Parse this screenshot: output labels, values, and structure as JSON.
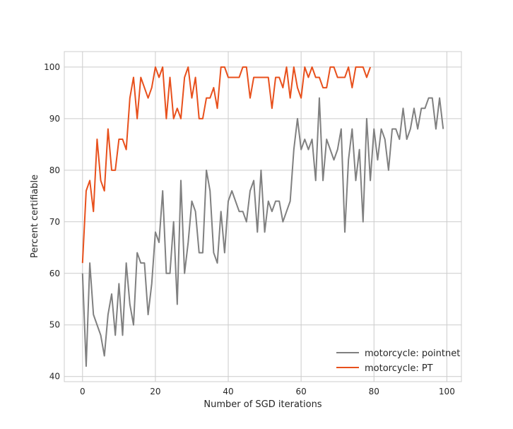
{
  "chart_data": {
    "type": "line",
    "title": "",
    "xlabel": "Number of SGD iterations",
    "ylabel": "Percent certifiable",
    "xlim": [
      -5,
      104
    ],
    "ylim": [
      39,
      103
    ],
    "xticks": [
      0,
      20,
      40,
      60,
      80,
      100
    ],
    "yticks": [
      40,
      50,
      60,
      70,
      80,
      90,
      100
    ],
    "grid": true,
    "legend_position": "lower-right",
    "series": [
      {
        "name": "motorcycle: pointnet",
        "color": "#808080",
        "x_start": 0,
        "values": [
          60,
          42,
          62,
          52,
          50,
          48,
          44,
          52,
          56,
          48,
          58,
          48,
          62,
          54,
          50,
          64,
          62,
          62,
          52,
          58,
          68,
          66,
          76,
          60,
          60,
          70,
          54,
          78,
          60,
          66,
          74,
          72,
          64,
          64,
          80,
          76,
          64,
          62,
          72,
          64,
          74,
          76,
          74,
          72,
          72,
          70,
          76,
          78,
          68,
          80,
          68,
          74,
          72,
          74,
          74,
          70,
          72,
          74,
          84,
          90,
          84,
          86,
          84,
          86,
          78,
          94,
          78,
          86,
          84,
          82,
          84,
          88,
          68,
          82,
          88,
          78,
          84,
          70,
          90,
          78,
          88,
          82,
          88,
          86,
          80,
          88,
          88,
          86,
          92,
          86,
          88,
          92,
          88,
          92,
          92,
          94,
          94,
          88,
          94,
          88
        ]
      },
      {
        "name": "motorcycle: PT",
        "color": "#e8501c",
        "x_start": 0,
        "values": [
          62,
          76,
          78,
          72,
          86,
          78,
          76,
          88,
          80,
          80,
          86,
          86,
          84,
          94,
          98,
          90,
          98,
          96,
          94,
          96,
          100,
          98,
          100,
          90,
          98,
          90,
          92,
          90,
          98,
          100,
          94,
          98,
          90,
          90,
          94,
          94,
          96,
          92,
          100,
          100,
          98,
          98,
          98,
          98,
          100,
          100,
          94,
          98,
          98,
          98,
          98,
          98,
          92,
          98,
          98,
          96,
          100,
          94,
          100,
          96,
          94,
          100,
          98,
          100,
          98,
          98,
          96,
          96,
          100,
          100,
          98,
          98,
          98,
          100,
          96,
          100,
          100,
          100,
          98,
          100
        ]
      }
    ]
  }
}
